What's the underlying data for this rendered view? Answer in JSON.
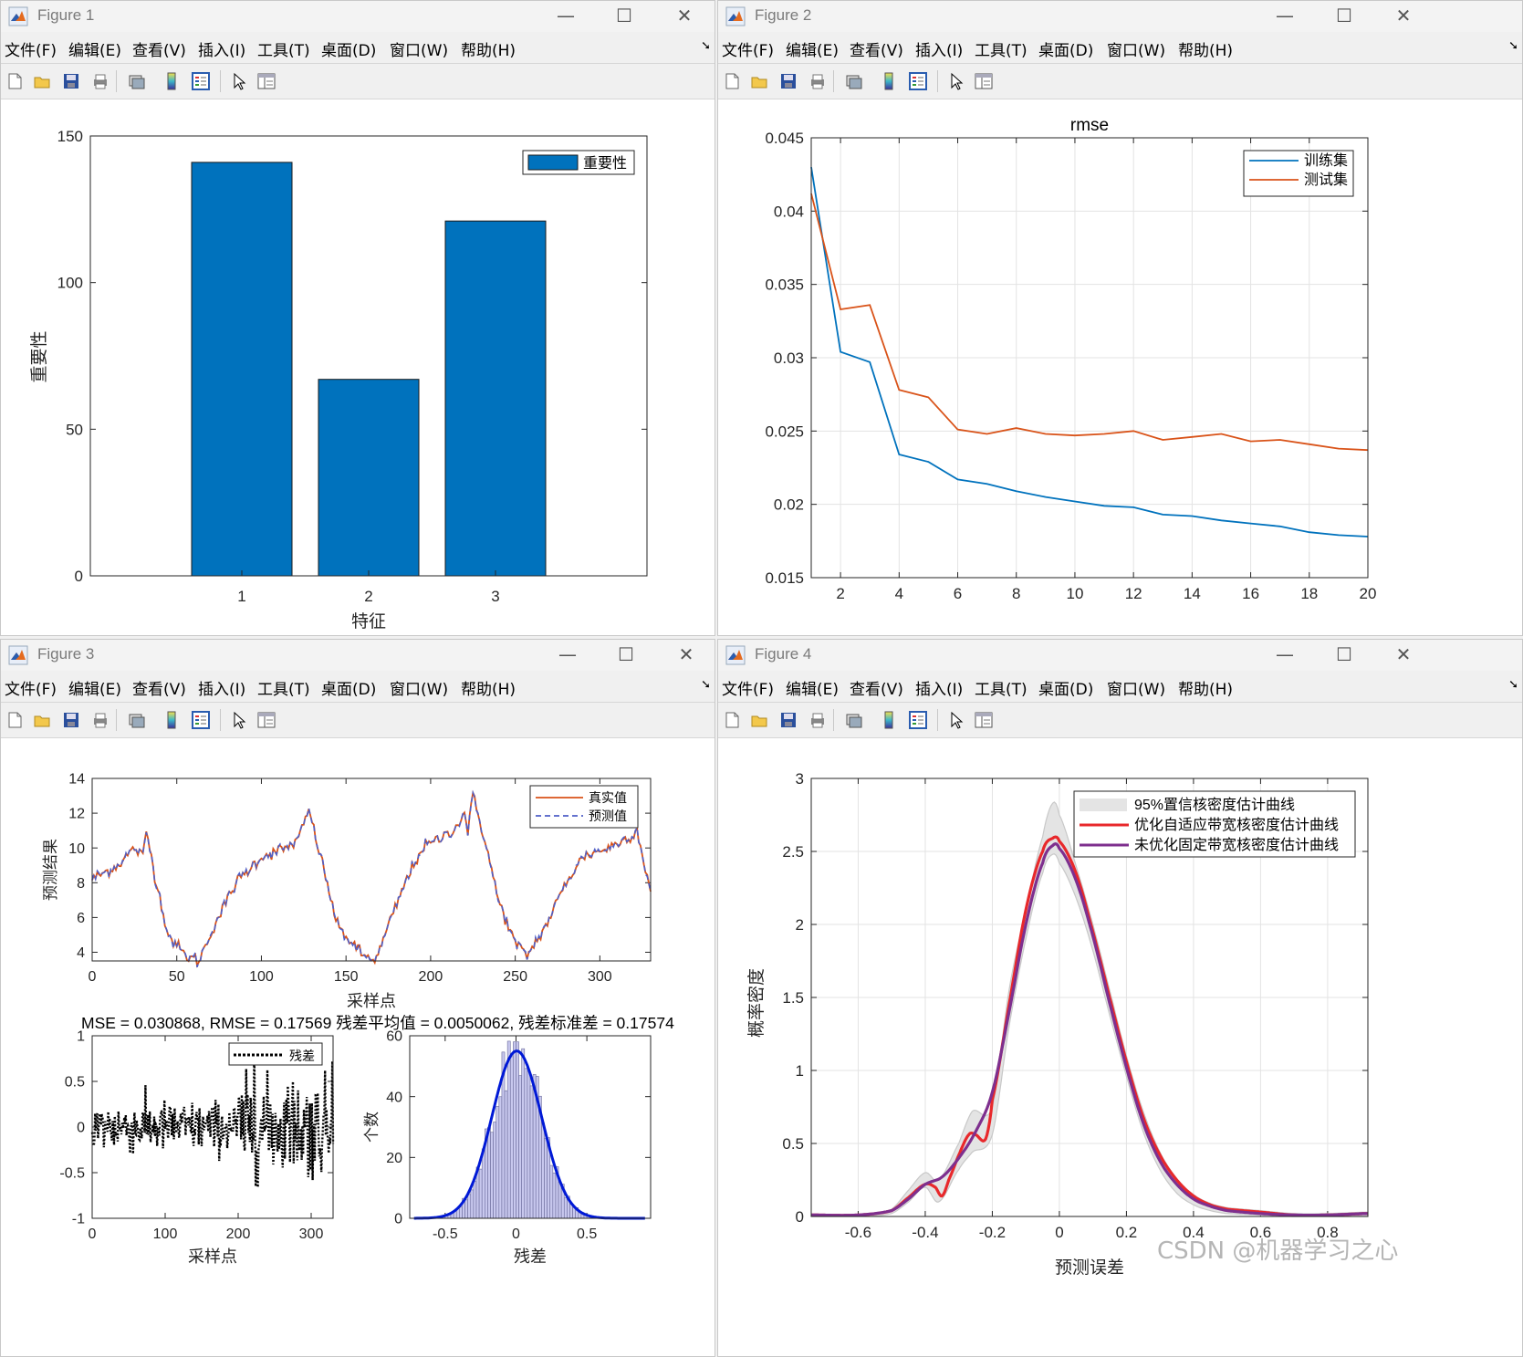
{
  "menu": [
    "文件(F)",
    "编辑(E)",
    "查看(V)",
    "插入(I)",
    "工具(T)",
    "桌面(D)",
    "窗口(W)",
    "帮助(H)"
  ],
  "icons": [
    "new-file-icon",
    "open-folder-icon",
    "save-icon",
    "print-icon",
    "print-preview-icon",
    "colorbar-icon",
    "legend-icon",
    "pointer-icon",
    "property-editor-icon"
  ],
  "window_controls": [
    "minimize-icon",
    "maximize-icon",
    "close-icon"
  ],
  "figures": {
    "f1": {
      "title": "Figure 1"
    },
    "f2": {
      "title": "Figure 2"
    },
    "f3": {
      "title": "Figure 3"
    },
    "f4": {
      "title": "Figure 4"
    }
  },
  "watermark": "CSDN @机器学习之心",
  "chart_data": [
    {
      "id": "feature-importance",
      "type": "bar",
      "categories": [
        "1",
        "2",
        "3"
      ],
      "values": [
        141,
        67,
        121
      ],
      "xlabel": "特征",
      "ylabel": "重要性",
      "ylim": [
        0,
        150
      ],
      "yticks": [
        0,
        50,
        100,
        150
      ],
      "legend": [
        "重要性"
      ],
      "legend_position": "top-right",
      "color": "#0072bd"
    },
    {
      "id": "rmse-curve",
      "type": "line",
      "title": "rmse",
      "x": [
        1,
        2,
        3,
        4,
        5,
        6,
        7,
        8,
        9,
        10,
        11,
        12,
        13,
        14,
        15,
        16,
        17,
        18,
        19,
        20
      ],
      "series": [
        {
          "name": "训练集",
          "color": "#0072bd",
          "values": [
            0.043,
            0.0304,
            0.0297,
            0.0234,
            0.0229,
            0.0217,
            0.0214,
            0.0209,
            0.0205,
            0.0202,
            0.0199,
            0.0198,
            0.0193,
            0.0192,
            0.0189,
            0.0187,
            0.0185,
            0.0181,
            0.0179,
            0.0178
          ]
        },
        {
          "name": "测试集",
          "color": "#d95319",
          "values": [
            0.0412,
            0.0333,
            0.0336,
            0.0278,
            0.0273,
            0.0251,
            0.0248,
            0.0252,
            0.0248,
            0.0247,
            0.0248,
            0.025,
            0.0244,
            0.0246,
            0.0248,
            0.0243,
            0.0244,
            0.0241,
            0.0238,
            0.0237
          ]
        }
      ],
      "xlim": [
        1,
        20
      ],
      "xticks": [
        2,
        4,
        6,
        8,
        10,
        12,
        14,
        16,
        18,
        20
      ],
      "ylim": [
        0.015,
        0.045
      ],
      "yticks": [
        "0.015",
        "0.02",
        "0.025",
        "0.03",
        "0.035",
        "0.04",
        "0.045"
      ],
      "grid": true,
      "legend_position": "top-right"
    },
    {
      "id": "prediction",
      "type": "line",
      "xlabel": "采样点",
      "ylabel": "预测结果",
      "xlim": [
        0,
        330
      ],
      "ylim": [
        3.5,
        14
      ],
      "xticks": [
        0,
        50,
        100,
        150,
        200,
        250,
        300
      ],
      "yticks": [
        4,
        6,
        8,
        10,
        12,
        14
      ],
      "key_points": [
        [
          0,
          8.2
        ],
        [
          15,
          9.0
        ],
        [
          25,
          10.0
        ],
        [
          30,
          9.5
        ],
        [
          32,
          11.0
        ],
        [
          38,
          8.0
        ],
        [
          45,
          5.0
        ],
        [
          55,
          3.8
        ],
        [
          63,
          3.5
        ],
        [
          72,
          5.5
        ],
        [
          85,
          8.0
        ],
        [
          100,
          9.5
        ],
        [
          115,
          10.0
        ],
        [
          122,
          10.5
        ],
        [
          128,
          12.2
        ],
        [
          135,
          9.5
        ],
        [
          145,
          5.5
        ],
        [
          160,
          3.8
        ],
        [
          168,
          3.6
        ],
        [
          175,
          5.5
        ],
        [
          185,
          8.0
        ],
        [
          195,
          10.0
        ],
        [
          205,
          10.5
        ],
        [
          215,
          11.2
        ],
        [
          220,
          12.0
        ],
        [
          222,
          11.0
        ],
        [
          225,
          13.0
        ],
        [
          232,
          10.5
        ],
        [
          240,
          7.0
        ],
        [
          250,
          4.5
        ],
        [
          257,
          3.8
        ],
        [
          268,
          5.5
        ],
        [
          280,
          8.0
        ],
        [
          290,
          9.5
        ],
        [
          305,
          10.0
        ],
        [
          315,
          10.5
        ],
        [
          322,
          11.0
        ],
        [
          330,
          7.5
        ]
      ],
      "series": [
        {
          "name": "真实值",
          "color": "#d95319",
          "style": "solid"
        },
        {
          "name": "预测值",
          "color": "#4f5fc7",
          "style": "dashed"
        }
      ],
      "legend_position": "top-right"
    },
    {
      "id": "metrics",
      "type": "table",
      "text": "MSE = 0.030868, RMSE = 0.17569 残差平均值 = 0.0050062, 残差标准差 = 0.17574"
    },
    {
      "id": "residual",
      "type": "line",
      "xlabel": "采样点",
      "xlim": [
        0,
        330
      ],
      "ylim": [
        -1,
        1
      ],
      "xticks": [
        0,
        100,
        200,
        300
      ],
      "yticks": [
        "-1",
        "-0.5",
        "0",
        "0.5",
        "1"
      ],
      "series": [
        {
          "name": "残差",
          "color": "#000000",
          "style": "dotted"
        }
      ],
      "legend_position": "top-right"
    },
    {
      "id": "residual-histogram",
      "type": "bar",
      "xlabel": "残差",
      "ylabel": "个数",
      "xlim": [
        -0.75,
        0.95
      ],
      "ylim": [
        0,
        60
      ],
      "xticks": [
        "-0.5",
        "0",
        "0.5"
      ],
      "yticks": [
        0,
        20,
        40,
        60
      ],
      "bin_width": 0.02,
      "fit_mean": 0.005,
      "fit_std": 0.17574,
      "fit_peak": 55,
      "bar_color": "#c8c8ee",
      "fit_color": "#0019d6"
    },
    {
      "id": "kde",
      "type": "line",
      "xlabel": "预测误差",
      "ylabel": "概率密度",
      "xlim": [
        -0.74,
        0.92
      ],
      "ylim": [
        0,
        3
      ],
      "xticks": [
        "-0.6",
        "-0.4",
        "-0.2",
        "0",
        "0.2",
        "0.4",
        "0.6",
        "0.8"
      ],
      "yticks": [
        "0",
        "0.5",
        "1",
        "1.5",
        "2",
        "2.5",
        "3"
      ],
      "grid": true,
      "series": [
        {
          "name": "95%置信核密度估计曲线",
          "color": "#d9d9d9",
          "kind": "band",
          "x": [
            -0.74,
            -0.6,
            -0.5,
            -0.45,
            -0.4,
            -0.36,
            -0.3,
            -0.26,
            -0.2,
            -0.15,
            -0.1,
            -0.05,
            -0.02,
            0,
            0.05,
            0.1,
            0.15,
            0.2,
            0.25,
            0.3,
            0.35,
            0.4,
            0.45,
            0.5,
            0.6,
            0.7,
            0.8,
            0.92
          ],
          "upper": [
            0.01,
            0.01,
            0.05,
            0.18,
            0.3,
            0.25,
            0.5,
            0.72,
            0.75,
            1.55,
            2.1,
            2.6,
            2.83,
            2.75,
            2.4,
            2.0,
            1.55,
            1.1,
            0.72,
            0.44,
            0.26,
            0.15,
            0.09,
            0.06,
            0.04,
            0.02,
            0.02,
            0.03
          ],
          "lower": [
            0.0,
            0.0,
            0.02,
            0.1,
            0.2,
            0.1,
            0.32,
            0.44,
            0.56,
            1.3,
            1.9,
            2.35,
            2.48,
            2.42,
            2.18,
            1.82,
            1.38,
            0.96,
            0.58,
            0.32,
            0.16,
            0.08,
            0.04,
            0.02,
            0.01,
            0.0,
            0.0,
            0.0
          ]
        },
        {
          "name": "优化自适应带宽核密度估计曲线",
          "color": "#e8282b",
          "x": [
            -0.74,
            -0.6,
            -0.5,
            -0.45,
            -0.4,
            -0.37,
            -0.35,
            -0.33,
            -0.3,
            -0.27,
            -0.25,
            -0.22,
            -0.2,
            -0.15,
            -0.1,
            -0.05,
            -0.02,
            0,
            0.05,
            0.1,
            0.15,
            0.2,
            0.25,
            0.3,
            0.35,
            0.4,
            0.45,
            0.5,
            0.6,
            0.7,
            0.8,
            0.92
          ],
          "values": [
            0.01,
            0.01,
            0.04,
            0.13,
            0.22,
            0.2,
            0.14,
            0.25,
            0.42,
            0.56,
            0.56,
            0.53,
            0.8,
            1.45,
            2.1,
            2.5,
            2.59,
            2.57,
            2.35,
            1.95,
            1.5,
            1.06,
            0.68,
            0.42,
            0.25,
            0.14,
            0.08,
            0.05,
            0.03,
            0.01,
            0.01,
            0.02
          ]
        },
        {
          "name": "未优化固定带宽核密度估计曲线",
          "color": "#7e2f8e",
          "x": [
            -0.74,
            -0.6,
            -0.5,
            -0.45,
            -0.4,
            -0.35,
            -0.3,
            -0.25,
            -0.2,
            -0.15,
            -0.1,
            -0.05,
            -0.02,
            0,
            0.05,
            0.1,
            0.15,
            0.2,
            0.25,
            0.3,
            0.35,
            0.4,
            0.45,
            0.5,
            0.6,
            0.7,
            0.8,
            0.92
          ],
          "values": [
            0.01,
            0.01,
            0.04,
            0.12,
            0.22,
            0.27,
            0.4,
            0.58,
            0.85,
            1.4,
            2.0,
            2.42,
            2.54,
            2.52,
            2.3,
            1.92,
            1.46,
            1.02,
            0.64,
            0.38,
            0.22,
            0.12,
            0.07,
            0.04,
            0.02,
            0.01,
            0.01,
            0.02
          ]
        }
      ],
      "legend_position": "top-right"
    }
  ]
}
